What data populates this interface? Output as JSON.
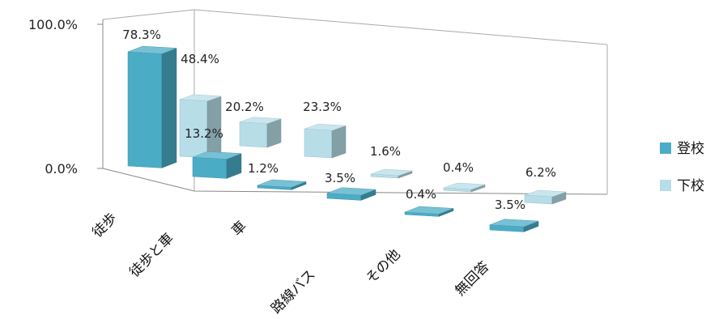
{
  "chart_data": {
    "type": "bar",
    "style": "3d-clustered-depth",
    "title": "",
    "xlabel": "",
    "ylabel": "",
    "ylim": [
      0,
      100
    ],
    "yticks": [
      "0.0%",
      "100.0%"
    ],
    "categories": [
      "徒歩",
      "徒歩と車",
      "車",
      "路線バス",
      "その他",
      "無回答"
    ],
    "series": [
      {
        "name": "登校",
        "values": [
          78.3,
          13.2,
          1.2,
          3.5,
          0.4,
          3.5
        ],
        "labels": [
          "78.3%",
          "13.2%",
          "1.2%",
          "3.5%",
          "0.4%",
          "3.5%"
        ],
        "color": "#4BACC6"
      },
      {
        "name": "下校",
        "values": [
          48.4,
          20.2,
          23.3,
          1.6,
          0.4,
          6.2
        ],
        "labels": [
          "48.4%",
          "20.2%",
          "23.3%",
          "1.6%",
          "0.4%",
          "6.2%"
        ],
        "color": "#B7DEE8"
      }
    ],
    "legend": "right",
    "grid": false
  }
}
